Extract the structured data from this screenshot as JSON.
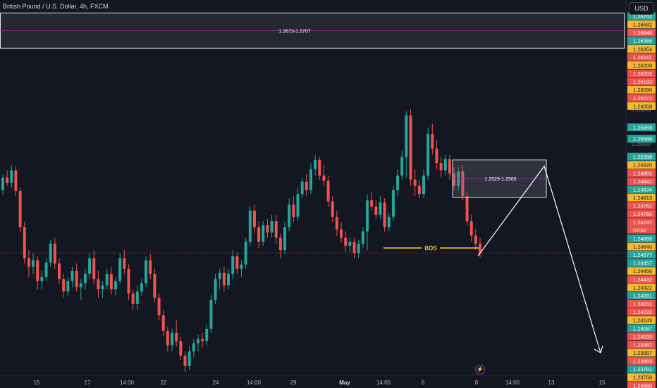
{
  "header": {
    "title": "British Pound / U.S. Dollar, 4h, FXCM",
    "currency_button": "USD",
    "flash_icon": "lightning-icon"
  },
  "colors": {
    "background": "#131722",
    "up": "#26a69a",
    "down": "#ef5350",
    "zone_line": "#9c27b0",
    "bos": "#f5b82e",
    "arrow": "#ffffff"
  },
  "chart_data": {
    "type": "candlestick",
    "symbol": "GBPUSD",
    "timeframe": "4h",
    "ylim": [
      1.2357,
      1.271
    ],
    "x_ticks": [
      "15",
      "17",
      "14:00",
      "22",
      "24",
      "14:00",
      "29",
      "May",
      "14:00",
      "6",
      "8",
      "14:00",
      "13",
      "15"
    ],
    "current_price": "1.24747",
    "countdown": "02:52",
    "price_labels": [
      {
        "value": "1.26702",
        "color": "#26a69a"
      },
      {
        "value": "1.26682",
        "color": "#f5b82e"
      },
      {
        "value": "1.26648",
        "color": "#ef5350"
      },
      {
        "value": "1.26386",
        "color": "#26a69a"
      },
      {
        "value": "1.26354",
        "color": "#f5b82e"
      },
      {
        "value": "1.26211",
        "color": "#ef5350"
      },
      {
        "value": "1.26208",
        "color": "#f5b82e"
      },
      {
        "value": "1.26201",
        "color": "#ef5350"
      },
      {
        "value": "1.26192",
        "color": "#ef5350"
      },
      {
        "value": "1.26090",
        "color": "#f5b82e"
      },
      {
        "value": "1.26072",
        "color": "#ef5350"
      },
      {
        "value": "1.26058",
        "color": "#f5b82e"
      },
      {
        "value": "1.25859",
        "color": "#26a69a"
      },
      {
        "value": "1.25686",
        "color": "#26a69a"
      },
      {
        "value": "1.25398",
        "color": "#26a69a"
      },
      {
        "value": "1.24920",
        "color": "#f5b82e"
      },
      {
        "value": "1.24891",
        "color": "#ef5350"
      },
      {
        "value": "1.24841",
        "color": "#ef5350"
      },
      {
        "value": "1.24834",
        "color": "#26a69a"
      },
      {
        "value": "1.24813",
        "color": "#f5b82e"
      },
      {
        "value": "1.24761",
        "color": "#ef5350"
      },
      {
        "value": "1.24760",
        "color": "#ef5350"
      },
      {
        "value": "1.24747",
        "color": "#ef5350"
      },
      {
        "value": "1.24666",
        "color": "#26a69a"
      },
      {
        "value": "1.24640",
        "color": "#f5b82e"
      },
      {
        "value": "1.24577",
        "color": "#26a69a"
      },
      {
        "value": "1.24457",
        "color": "#26a69a"
      },
      {
        "value": "1.24456",
        "color": "#f5b82e"
      },
      {
        "value": "1.24432",
        "color": "#ef5350"
      },
      {
        "value": "1.24322",
        "color": "#f5b82e"
      },
      {
        "value": "1.24281",
        "color": "#26a69a"
      },
      {
        "value": "1.24231",
        "color": "#ef5350"
      },
      {
        "value": "1.24222",
        "color": "#ef5350"
      },
      {
        "value": "1.24149",
        "color": "#f5b82e"
      },
      {
        "value": "1.24087",
        "color": "#26a69a"
      },
      {
        "value": "1.24033",
        "color": "#ef5350"
      },
      {
        "value": "1.23987",
        "color": "#ef5350"
      },
      {
        "value": "1.23887",
        "color": "#f5b82e"
      },
      {
        "value": "1.23883",
        "color": "#ef5350"
      },
      {
        "value": "1.23781",
        "color": "#26a69a"
      },
      {
        "value": "1.23758",
        "color": "#f5b82e"
      },
      {
        "value": "1.23680",
        "color": "#ef5350"
      }
    ],
    "axis_ticks": [
      "1.26000",
      "1.25800",
      "1.25600"
    ],
    "zones": [
      {
        "label": "1.2673-1.2707",
        "low": 1.2673,
        "high": 1.2707
      },
      {
        "label": "1.2529-1.2565",
        "low": 1.2529,
        "high": 1.2565
      }
    ],
    "bos": {
      "label": "BOS",
      "price": 1.248
    },
    "candles": [
      [
        1.2536,
        1.2551,
        1.2531,
        1.2548
      ],
      [
        1.2548,
        1.2555,
        1.254,
        1.2543
      ],
      [
        1.2543,
        1.256,
        1.2538,
        1.2555
      ],
      [
        1.2555,
        1.2559,
        1.253,
        1.2535
      ],
      [
        1.2535,
        1.2538,
        1.2495,
        1.25
      ],
      [
        1.25,
        1.2505,
        1.2465,
        1.247
      ],
      [
        1.247,
        1.2478,
        1.2452,
        1.2462
      ],
      [
        1.2462,
        1.2475,
        1.2455,
        1.2468
      ],
      [
        1.2468,
        1.2472,
        1.244,
        1.2448
      ],
      [
        1.2448,
        1.2458,
        1.244,
        1.2452
      ],
      [
        1.2452,
        1.247,
        1.2448,
        1.2466
      ],
      [
        1.2466,
        1.2488,
        1.2462,
        1.2484
      ],
      [
        1.2484,
        1.249,
        1.246,
        1.2465
      ],
      [
        1.2465,
        1.247,
        1.2445,
        1.245
      ],
      [
        1.245,
        1.2455,
        1.2432,
        1.2438
      ],
      [
        1.2438,
        1.2452,
        1.2434,
        1.2448
      ],
      [
        1.2448,
        1.2462,
        1.2442,
        1.2458
      ],
      [
        1.2458,
        1.2465,
        1.2438,
        1.2442
      ],
      [
        1.2442,
        1.245,
        1.243,
        1.2446
      ],
      [
        1.2446,
        1.246,
        1.244,
        1.2455
      ],
      [
        1.2455,
        1.2475,
        1.245,
        1.247
      ],
      [
        1.247,
        1.2478,
        1.2445,
        1.245
      ],
      [
        1.245,
        1.2458,
        1.2432,
        1.244
      ],
      [
        1.244,
        1.2448,
        1.2432,
        1.2444
      ],
      [
        1.2444,
        1.246,
        1.244,
        1.2455
      ],
      [
        1.2455,
        1.2462,
        1.2435,
        1.244
      ],
      [
        1.244,
        1.2452,
        1.2434,
        1.2448
      ],
      [
        1.2448,
        1.2475,
        1.2445,
        1.247
      ],
      [
        1.247,
        1.2478,
        1.2455,
        1.246
      ],
      [
        1.246,
        1.2464,
        1.243,
        1.2436
      ],
      [
        1.2436,
        1.244,
        1.242,
        1.2426
      ],
      [
        1.2426,
        1.2444,
        1.242,
        1.2438
      ],
      [
        1.2438,
        1.245,
        1.2434,
        1.2446
      ],
      [
        1.2446,
        1.2472,
        1.2442,
        1.2468
      ],
      [
        1.2468,
        1.2474,
        1.245,
        1.2455
      ],
      [
        1.2455,
        1.246,
        1.2428,
        1.2432
      ],
      [
        1.2432,
        1.2436,
        1.241,
        1.2415
      ],
      [
        1.2415,
        1.242,
        1.2395,
        1.24
      ],
      [
        1.24,
        1.2404,
        1.238,
        1.2386
      ],
      [
        1.2386,
        1.2402,
        1.238,
        1.2398
      ],
      [
        1.2398,
        1.241,
        1.2385,
        1.239
      ],
      [
        1.239,
        1.2394,
        1.2372,
        1.2376
      ],
      [
        1.2376,
        1.238,
        1.236,
        1.2366
      ],
      [
        1.2366,
        1.2385,
        1.2362,
        1.238
      ],
      [
        1.238,
        1.2392,
        1.2374,
        1.2388
      ],
      [
        1.2388,
        1.2396,
        1.238,
        1.2392
      ],
      [
        1.2392,
        1.2398,
        1.2384,
        1.239
      ],
      [
        1.239,
        1.2406,
        1.2386,
        1.2402
      ],
      [
        1.2402,
        1.2435,
        1.2398,
        1.243
      ],
      [
        1.243,
        1.2455,
        1.2426,
        1.245
      ],
      [
        1.245,
        1.246,
        1.244,
        1.2456
      ],
      [
        1.2456,
        1.2462,
        1.2438,
        1.2444
      ],
      [
        1.2444,
        1.246,
        1.244,
        1.2455
      ],
      [
        1.2455,
        1.2478,
        1.245,
        1.2472
      ],
      [
        1.2472,
        1.2476,
        1.2455,
        1.246
      ],
      [
        1.246,
        1.2468,
        1.2452,
        1.2464
      ],
      [
        1.2464,
        1.249,
        1.246,
        1.2486
      ],
      [
        1.2486,
        1.252,
        1.2482,
        1.2516
      ],
      [
        1.2516,
        1.2522,
        1.2494,
        1.25
      ],
      [
        1.25,
        1.2506,
        1.248,
        1.2486
      ],
      [
        1.2486,
        1.2506,
        1.2482,
        1.2502
      ],
      [
        1.2502,
        1.2508,
        1.249,
        1.2495
      ],
      [
        1.2495,
        1.2512,
        1.249,
        1.2506
      ],
      [
        1.2506,
        1.2512,
        1.2484,
        1.249
      ],
      [
        1.249,
        1.2494,
        1.247,
        1.2478
      ],
      [
        1.2478,
        1.2505,
        1.2474,
        1.25
      ],
      [
        1.25,
        1.2528,
        1.2496,
        1.2522
      ],
      [
        1.2522,
        1.253,
        1.2505,
        1.251
      ],
      [
        1.251,
        1.2538,
        1.2506,
        1.2532
      ],
      [
        1.2532,
        1.2548,
        1.2528,
        1.2544
      ],
      [
        1.2544,
        1.2552,
        1.253,
        1.2536
      ],
      [
        1.2536,
        1.2562,
        1.2532,
        1.2556
      ],
      [
        1.2556,
        1.257,
        1.255,
        1.2565
      ],
      [
        1.2565,
        1.2568,
        1.2546,
        1.255
      ],
      [
        1.255,
        1.256,
        1.254,
        1.2545
      ],
      [
        1.2545,
        1.255,
        1.252,
        1.2525
      ],
      [
        1.2525,
        1.253,
        1.2505,
        1.251
      ],
      [
        1.251,
        1.2516,
        1.2492,
        1.2498
      ],
      [
        1.2498,
        1.2505,
        1.2485,
        1.249
      ],
      [
        1.249,
        1.2496,
        1.2476,
        1.2482
      ],
      [
        1.2482,
        1.249,
        1.2476,
        1.2486
      ],
      [
        1.2486,
        1.249,
        1.247,
        1.2475
      ],
      [
        1.2475,
        1.2488,
        1.247,
        1.2484
      ],
      [
        1.2484,
        1.25,
        1.248,
        1.2496
      ],
      [
        1.2496,
        1.2532,
        1.2478,
        1.2526
      ],
      [
        1.2526,
        1.2534,
        1.2516,
        1.252
      ],
      [
        1.252,
        1.2526,
        1.2508,
        1.2512
      ],
      [
        1.2512,
        1.253,
        1.2508,
        1.2524
      ],
      [
        1.2524,
        1.2528,
        1.2496,
        1.25
      ],
      [
        1.25,
        1.2514,
        1.2496,
        1.251
      ],
      [
        1.251,
        1.254,
        1.2506,
        1.2536
      ],
      [
        1.2536,
        1.2556,
        1.253,
        1.255
      ],
      [
        1.255,
        1.2574,
        1.2546,
        1.2568
      ],
      [
        1.2568,
        1.2612,
        1.2548,
        1.2608
      ],
      [
        1.2608,
        1.2614,
        1.254,
        1.2546
      ],
      [
        1.2546,
        1.2556,
        1.253,
        1.254
      ],
      [
        1.254,
        1.2546,
        1.2528,
        1.2532
      ],
      [
        1.2532,
        1.2556,
        1.2528,
        1.255
      ],
      [
        1.255,
        1.2596,
        1.2546,
        1.259
      ],
      [
        1.259,
        1.26,
        1.257,
        1.2576
      ],
      [
        1.2576,
        1.2584,
        1.2556,
        1.2562
      ],
      [
        1.2562,
        1.2568,
        1.2548,
        1.2555
      ],
      [
        1.2555,
        1.257,
        1.255,
        1.2566
      ],
      [
        1.2566,
        1.257,
        1.2546,
        1.2552
      ],
      [
        1.2552,
        1.2558,
        1.2536,
        1.254
      ],
      [
        1.254,
        1.2558,
        1.2536,
        1.2554
      ],
      [
        1.2554,
        1.256,
        1.2526,
        1.253
      ],
      [
        1.253,
        1.2534,
        1.2502,
        1.2506
      ],
      [
        1.2506,
        1.2512,
        1.2486,
        1.2492
      ],
      [
        1.2492,
        1.2498,
        1.2478,
        1.2484
      ],
      [
        1.2484,
        1.249,
        1.2471,
        1.2475
      ]
    ]
  }
}
